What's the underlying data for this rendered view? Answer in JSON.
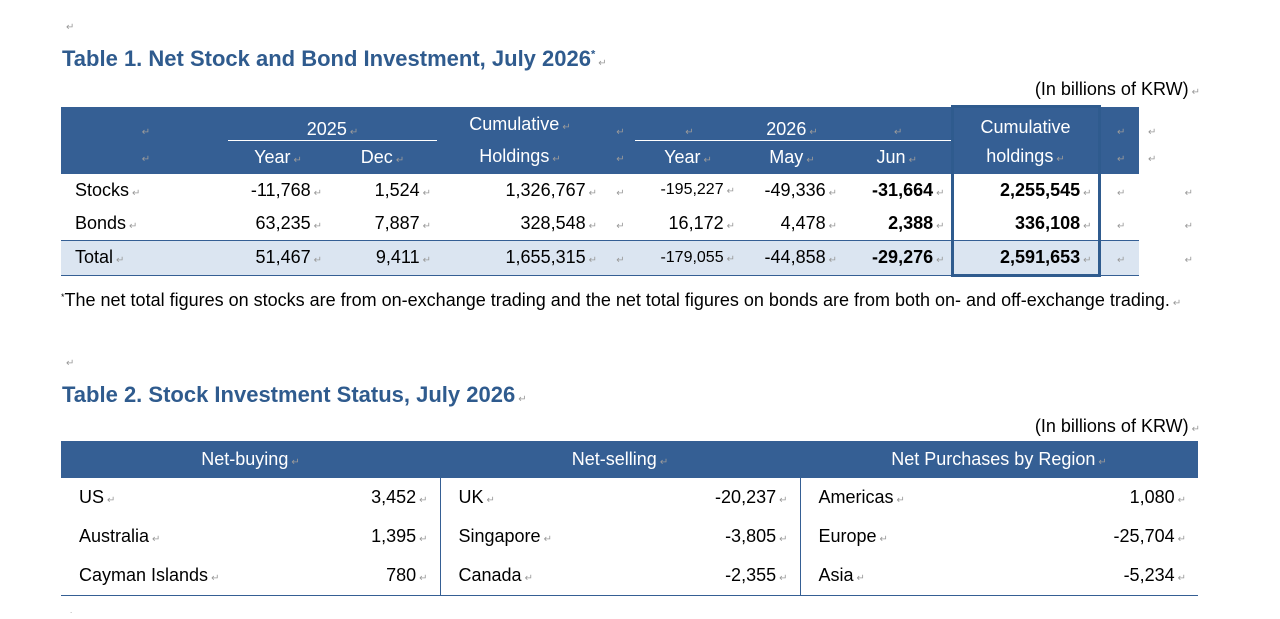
{
  "pilcrow": "↵",
  "table1": {
    "title": "Table 1. Net Stock and Bond Investment, July 2026",
    "title_mark": "*",
    "unit": "(In billions of KRW)",
    "headers": {
      "y2025": "2025",
      "y2025_year": "Year",
      "y2025_dec": "Dec",
      "cumulative_holdings_1": "Cumulative",
      "cumulative_holdings_2": "Holdings",
      "y2026": "2026",
      "y2026_year": "Year",
      "y2026_may": "May",
      "y2026_jun": "Jun",
      "cum_holdings_2026_1": "Cumulative",
      "cum_holdings_2026_2": "holdings"
    },
    "rows": [
      {
        "label": "Stocks",
        "y2025": "-11,768",
        "dec": "1,524",
        "cum": "1,326,767",
        "y2026": "-195,227",
        "may": "-49,336",
        "jun": "-31,664",
        "cum2026": "2,255,545"
      },
      {
        "label": "Bonds",
        "y2025": "63,235",
        "dec": "7,887",
        "cum": "328,548",
        "y2026": "16,172",
        "may": "4,478",
        "jun": "2,388",
        "cum2026": "336,108"
      },
      {
        "label": "Total",
        "y2025": "51,467",
        "dec": "9,411",
        "cum": "1,655,315",
        "y2026": "-179,055",
        "may": "-44,858",
        "jun": "-29,276",
        "cum2026": "2,591,653"
      }
    ],
    "footnote_mark": "*",
    "footnote": "The net total figures on stocks are from on-exchange trading and the net total figures on bonds are from both on- and off-exchange trading."
  },
  "table2": {
    "title": "Table 2. Stock Investment Status, July 2026",
    "unit": "(In billions of KRW)",
    "headers": [
      "Net-buying",
      "Net-selling",
      "Net Purchases by Region"
    ],
    "rows": [
      {
        "buy_name": "US",
        "buy_value": "3,452",
        "sell_name": "UK",
        "sell_value": "-20,237",
        "region_name": "Americas",
        "region_value": "1,080"
      },
      {
        "buy_name": "Australia",
        "buy_value": "1,395",
        "sell_name": "Singapore",
        "sell_value": "-3,805",
        "region_name": "Europe",
        "region_value": "-25,704"
      },
      {
        "buy_name": "Cayman Islands",
        "buy_value": "780",
        "sell_name": "Canada",
        "sell_value": "-2,355",
        "region_name": "Asia",
        "region_value": "-5,234"
      }
    ]
  },
  "colors": {
    "header_blue": "#355f94",
    "title_blue": "#2f5b8e",
    "total_row_bg": "#dbe5f1"
  }
}
